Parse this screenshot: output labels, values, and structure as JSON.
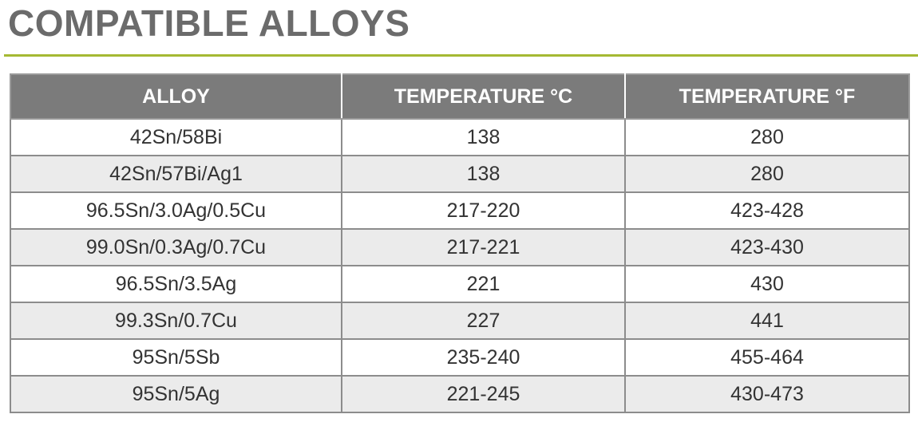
{
  "header": {
    "title": "COMPATIBLE ALLOYS"
  },
  "table": {
    "columns": [
      "ALLOY",
      "TEMPERATURE °C",
      "TEMPERATURE °F"
    ],
    "rows": [
      [
        "42Sn/58Bi",
        "138",
        "280"
      ],
      [
        "42Sn/57Bi/Ag1",
        "138",
        "280"
      ],
      [
        "96.5Sn/3.0Ag/0.5Cu",
        "217-220",
        "423-428"
      ],
      [
        "99.0Sn/0.3Ag/0.7Cu",
        "217-221",
        "423-430"
      ],
      [
        "96.5Sn/3.5Ag",
        "221",
        "430"
      ],
      [
        "99.3Sn/0.7Cu",
        "227",
        "441"
      ],
      [
        "95Sn/5Sb",
        "235-240",
        "455-464"
      ],
      [
        "95Sn/5Ag",
        "221-245",
        "430-473"
      ]
    ]
  }
}
